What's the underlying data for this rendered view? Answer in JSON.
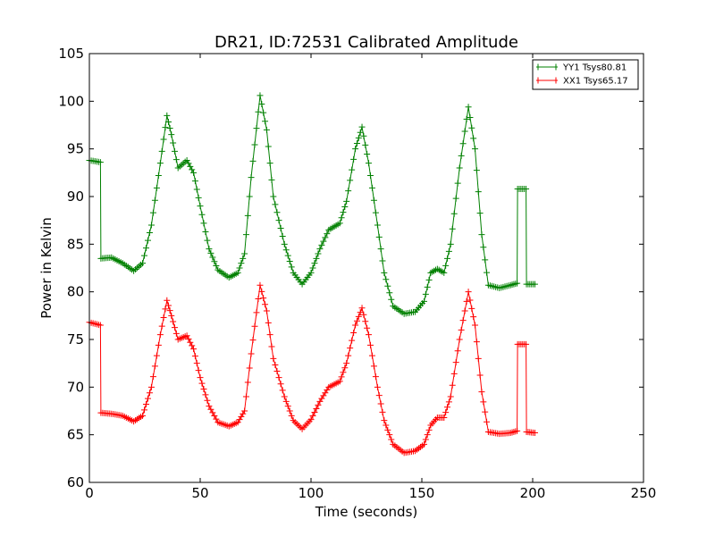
{
  "chart_data": {
    "type": "line",
    "title": "DR21, ID:72531 Calibrated Amplitude",
    "xlabel": "Time (seconds)",
    "ylabel": "Power in Kelvin",
    "xlim": [
      0,
      250
    ],
    "ylim": [
      60,
      105
    ],
    "xticks": [
      0,
      50,
      100,
      150,
      200,
      250
    ],
    "yticks": [
      60,
      65,
      70,
      75,
      80,
      85,
      90,
      95,
      100,
      105
    ],
    "grid": false,
    "legend": "top-right",
    "marker": "plus",
    "series": [
      {
        "name": "YY1 Tsys80.81",
        "color": "#008000",
        "points": [
          [
            0,
            93.8
          ],
          [
            5,
            93.6
          ],
          [
            5.2,
            83.5
          ],
          [
            10,
            83.6
          ],
          [
            15,
            83.0
          ],
          [
            20,
            82.2
          ],
          [
            24,
            83.0
          ],
          [
            28,
            87.0
          ],
          [
            32,
            93.5
          ],
          [
            35,
            98.5
          ],
          [
            37,
            96.5
          ],
          [
            40,
            93.0
          ],
          [
            44,
            93.8
          ],
          [
            47,
            92.5
          ],
          [
            50,
            89.0
          ],
          [
            54,
            84.5
          ],
          [
            58,
            82.3
          ],
          [
            63,
            81.5
          ],
          [
            67,
            82.0
          ],
          [
            70,
            84.0
          ],
          [
            73,
            92.0
          ],
          [
            77,
            100.6
          ],
          [
            80,
            97.0
          ],
          [
            83,
            90.0
          ],
          [
            88,
            85.0
          ],
          [
            92,
            82.0
          ],
          [
            96,
            80.8
          ],
          [
            100,
            82.0
          ],
          [
            104,
            84.5
          ],
          [
            108,
            86.5
          ],
          [
            113,
            87.2
          ],
          [
            116,
            89.5
          ],
          [
            120,
            95.0
          ],
          [
            123,
            97.3
          ],
          [
            126,
            93.5
          ],
          [
            130,
            87.0
          ],
          [
            133,
            82.0
          ],
          [
            137,
            78.5
          ],
          [
            142,
            77.7
          ],
          [
            147,
            77.9
          ],
          [
            151,
            79.0
          ],
          [
            154,
            82.0
          ],
          [
            157,
            82.4
          ],
          [
            160,
            82.0
          ],
          [
            163,
            85.0
          ],
          [
            167,
            93.0
          ],
          [
            171,
            99.4
          ],
          [
            174,
            95.0
          ],
          [
            177,
            86.0
          ],
          [
            180,
            80.7
          ],
          [
            185,
            80.4
          ],
          [
            190,
            80.7
          ],
          [
            193,
            80.9
          ],
          [
            193.2,
            90.8
          ],
          [
            197,
            90.8
          ],
          [
            197.2,
            80.8
          ],
          [
            201,
            80.8
          ]
        ]
      },
      {
        "name": "XX1 Tsys65.17",
        "color": "#ff0000",
        "points": [
          [
            0,
            76.8
          ],
          [
            5,
            76.5
          ],
          [
            5.2,
            67.3
          ],
          [
            10,
            67.2
          ],
          [
            15,
            67.0
          ],
          [
            20,
            66.4
          ],
          [
            24,
            67.0
          ],
          [
            28,
            70.0
          ],
          [
            32,
            75.5
          ],
          [
            35,
            79.1
          ],
          [
            37,
            77.5
          ],
          [
            40,
            75.0
          ],
          [
            44,
            75.4
          ],
          [
            47,
            74.0
          ],
          [
            50,
            71.0
          ],
          [
            54,
            68.0
          ],
          [
            58,
            66.3
          ],
          [
            63,
            65.9
          ],
          [
            67,
            66.3
          ],
          [
            70,
            67.5
          ],
          [
            73,
            73.5
          ],
          [
            77,
            80.7
          ],
          [
            80,
            78.0
          ],
          [
            83,
            73.0
          ],
          [
            88,
            69.0
          ],
          [
            92,
            66.5
          ],
          [
            96,
            65.6
          ],
          [
            100,
            66.6
          ],
          [
            104,
            68.5
          ],
          [
            108,
            70.0
          ],
          [
            113,
            70.6
          ],
          [
            116,
            72.5
          ],
          [
            120,
            76.5
          ],
          [
            123,
            78.3
          ],
          [
            126,
            75.5
          ],
          [
            130,
            70.0
          ],
          [
            133,
            66.5
          ],
          [
            137,
            64.0
          ],
          [
            142,
            63.1
          ],
          [
            147,
            63.3
          ],
          [
            151,
            64.0
          ],
          [
            154,
            66.0
          ],
          [
            157,
            66.8
          ],
          [
            160,
            66.8
          ],
          [
            163,
            69.0
          ],
          [
            167,
            75.0
          ],
          [
            171,
            80.0
          ],
          [
            174,
            76.5
          ],
          [
            177,
            69.5
          ],
          [
            180,
            65.3
          ],
          [
            185,
            65.1
          ],
          [
            190,
            65.2
          ],
          [
            193,
            65.4
          ],
          [
            193.2,
            74.5
          ],
          [
            197,
            74.5
          ],
          [
            197.2,
            65.3
          ],
          [
            201,
            65.2
          ]
        ]
      }
    ]
  }
}
